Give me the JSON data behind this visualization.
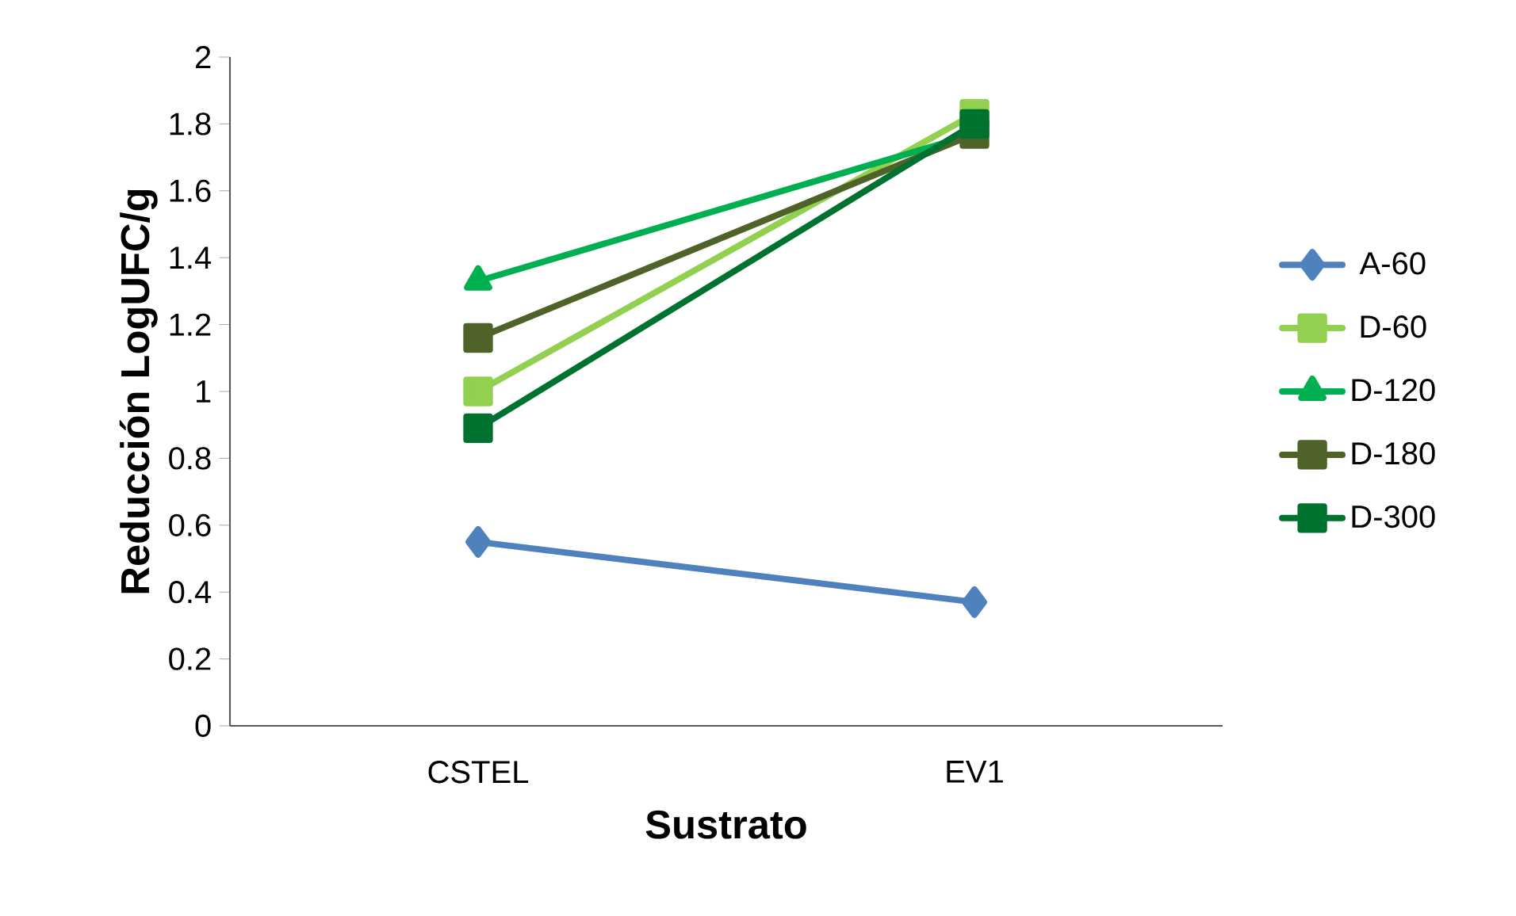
{
  "chart_data": {
    "type": "line",
    "xlabel": "Sustrato",
    "ylabel": "Reducción LogUFC/g",
    "categories": [
      "CSTEL",
      "EV1"
    ],
    "series": [
      {
        "name": "A-60",
        "color": "#4f81bd",
        "marker": "diamond",
        "values": [
          0.55,
          0.37
        ]
      },
      {
        "name": "D-60",
        "color": "#92d050",
        "marker": "square",
        "values": [
          1.0,
          1.83
        ]
      },
      {
        "name": "D-120",
        "color": "#00b050",
        "marker": "triangle",
        "values": [
          1.33,
          1.77
        ]
      },
      {
        "name": "D-180",
        "color": "#4f6228",
        "marker": "square",
        "values": [
          1.16,
          1.77
        ]
      },
      {
        "name": "D-300",
        "color": "#00722f",
        "marker": "square",
        "values": [
          0.89,
          1.8
        ]
      }
    ],
    "ylim": [
      0,
      2
    ],
    "yticks": [
      0,
      0.2,
      0.4,
      0.6,
      0.8,
      1,
      1.2,
      1.4,
      1.6,
      1.8,
      2
    ],
    "grid": false,
    "legend": "right",
    "line_style": "solid"
  }
}
